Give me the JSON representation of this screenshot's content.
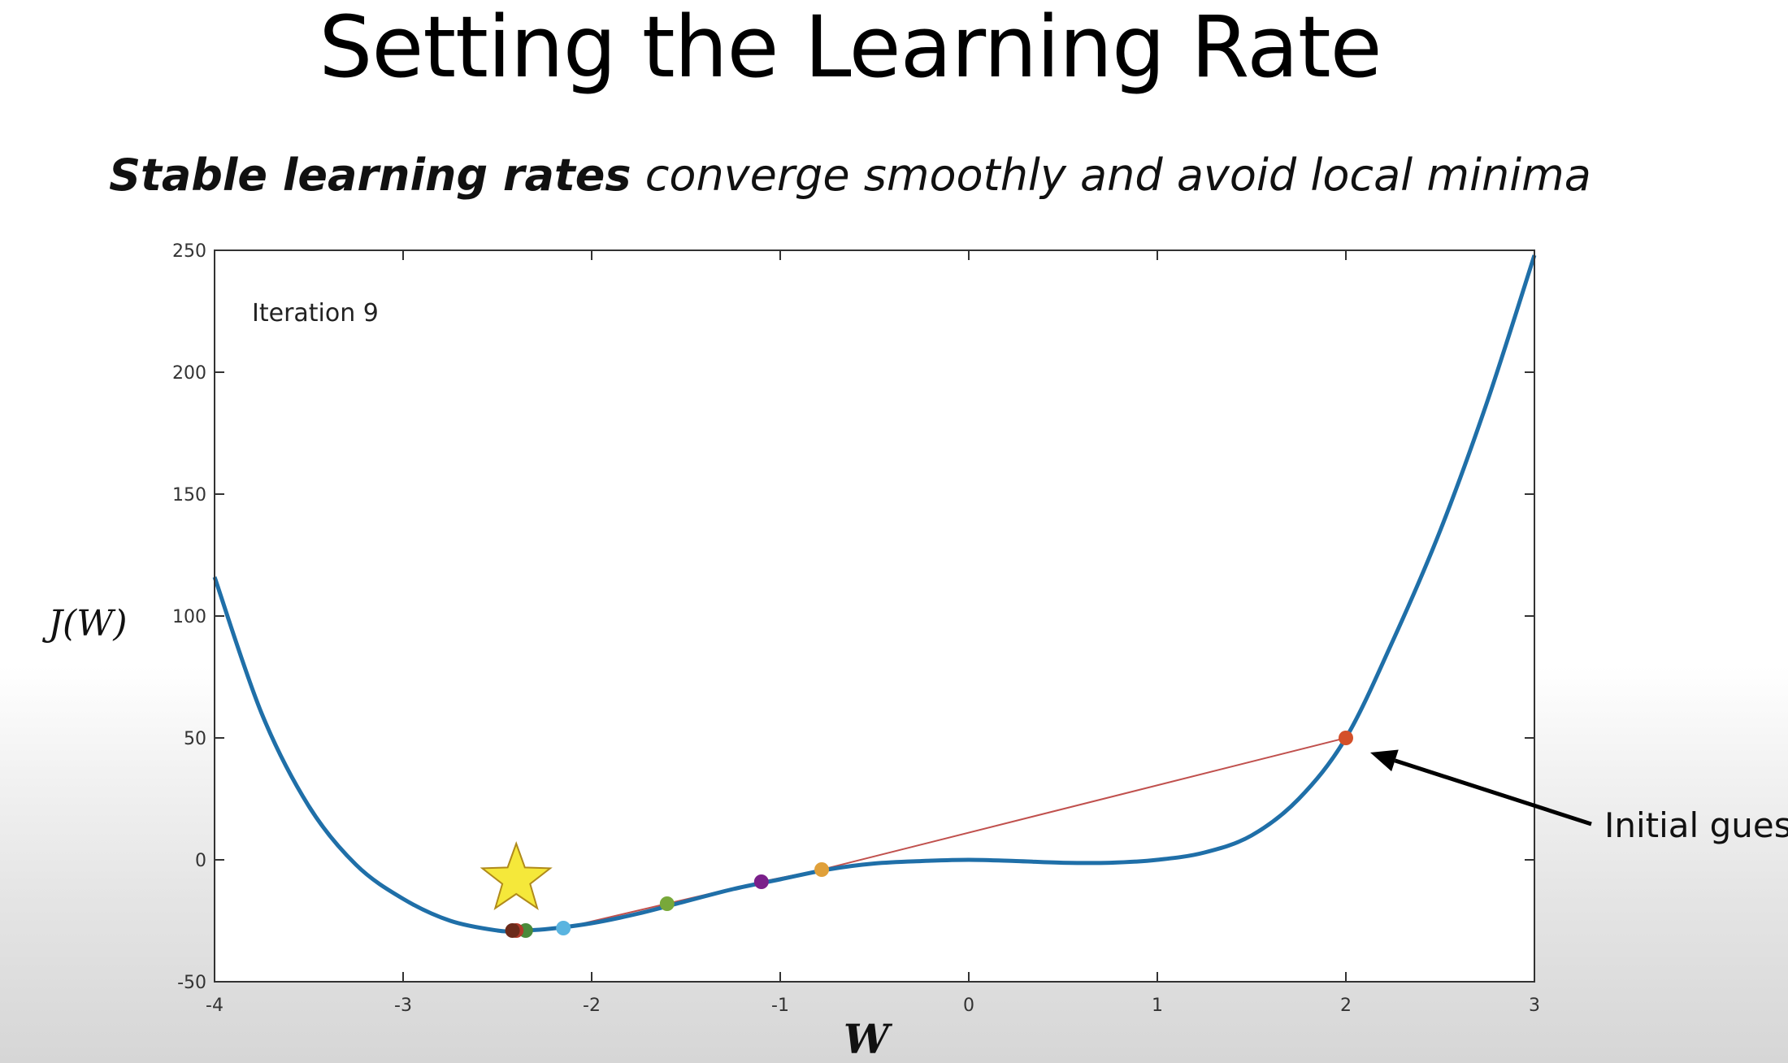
{
  "slide": {
    "title": "Setting the Learning Rate",
    "subtitle_bold": "Stable learning rates",
    "subtitle_rest": " converge smoothly and avoid local minima"
  },
  "chart_data": {
    "type": "line",
    "title": "",
    "xlabel": "W",
    "ylabel": "J(W)",
    "xlim": [
      -4,
      3
    ],
    "ylim": [
      -50,
      250
    ],
    "x_ticks": [
      -4,
      -3,
      -2,
      -1,
      0,
      1,
      2,
      3
    ],
    "y_ticks": [
      -50,
      0,
      50,
      100,
      150,
      200,
      250
    ],
    "annotation": "Iteration 9",
    "callout": {
      "text": "Initial guess",
      "target": [
        2,
        50
      ]
    },
    "curve": {
      "color": "#1f6fa8",
      "points": [
        [
          -4,
          116
        ],
        [
          -3.75,
          60
        ],
        [
          -3.5,
          22
        ],
        [
          -3.25,
          -2
        ],
        [
          -3,
          -16
        ],
        [
          -2.75,
          -25
        ],
        [
          -2.5,
          -29
        ],
        [
          -2.4,
          -29
        ],
        [
          -2.25,
          -28.5
        ],
        [
          -2,
          -26
        ],
        [
          -1.75,
          -22
        ],
        [
          -1.5,
          -17
        ],
        [
          -1.25,
          -12
        ],
        [
          -1,
          -8
        ],
        [
          -0.75,
          -4
        ],
        [
          -0.5,
          -1.5
        ],
        [
          -0.25,
          -0.5
        ],
        [
          0,
          0
        ],
        [
          0.25,
          -0.5
        ],
        [
          0.5,
          -1.2
        ],
        [
          0.75,
          -1.2
        ],
        [
          1,
          0
        ],
        [
          1.25,
          3
        ],
        [
          1.5,
          10
        ],
        [
          1.75,
          25
        ],
        [
          2,
          50
        ],
        [
          2.25,
          90
        ],
        [
          2.5,
          135
        ],
        [
          2.75,
          188
        ],
        [
          3,
          248
        ]
      ]
    },
    "iterations": [
      {
        "w": 2.0,
        "j": 50,
        "color": "#d4502a"
      },
      {
        "w": -0.78,
        "j": -4,
        "color": "#e0a03a"
      },
      {
        "w": -1.1,
        "j": -9,
        "color": "#7a1f8a"
      },
      {
        "w": -1.6,
        "j": -18,
        "color": "#78a83a"
      },
      {
        "w": -2.15,
        "j": -28,
        "color": "#5ab4e0"
      },
      {
        "w": -2.35,
        "j": -29,
        "color": "#4a8a3a"
      },
      {
        "w": -2.4,
        "j": -29,
        "color": "#b03a2a"
      },
      {
        "w": -2.42,
        "j": -29,
        "color": "#6b2a1a"
      }
    ],
    "step_line_color": "#c0504d",
    "star": {
      "w": -2.4,
      "j": -8,
      "color": "#f5e83a"
    }
  }
}
